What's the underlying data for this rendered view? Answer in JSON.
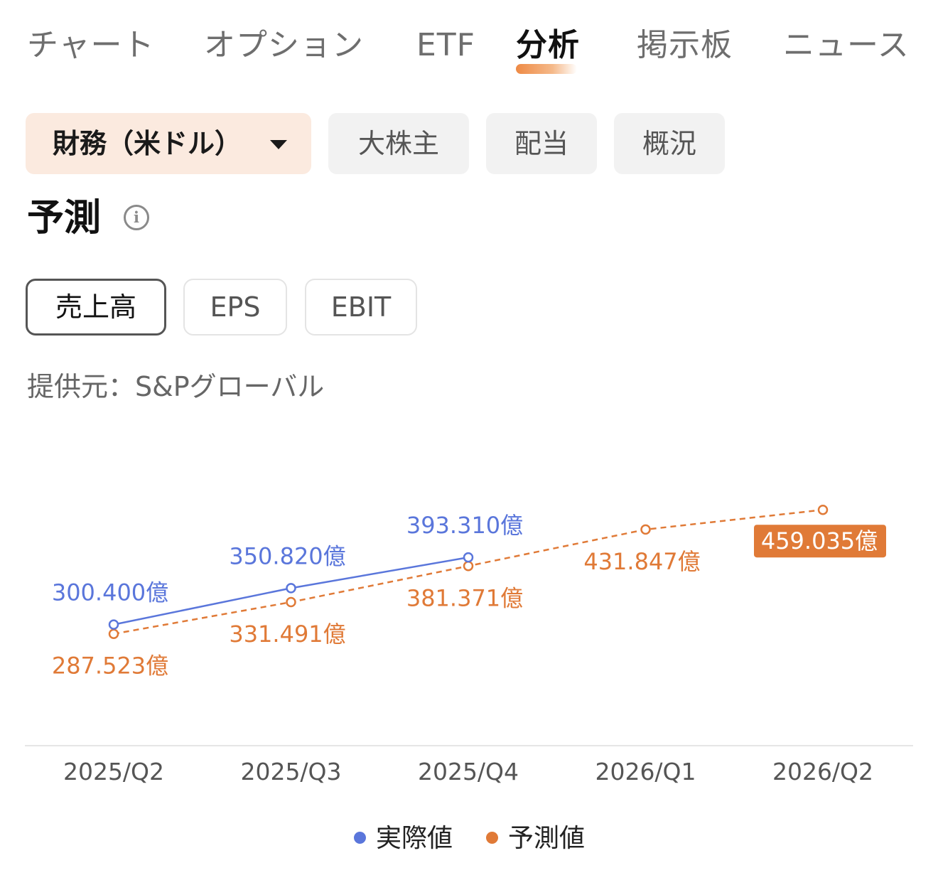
{
  "top_tabs": [
    {
      "label": "チャート",
      "active": false
    },
    {
      "label": "オプション",
      "active": false
    },
    {
      "label": "ETF",
      "active": false
    },
    {
      "label": "分析",
      "active": true
    },
    {
      "label": "掲示板",
      "active": false
    },
    {
      "label": "ニュース",
      "active": false
    }
  ],
  "sub_tabs": [
    {
      "label": "財務（米ドル）",
      "active": true,
      "dropdown": true
    },
    {
      "label": "大株主",
      "active": false
    },
    {
      "label": "配当",
      "active": false
    },
    {
      "label": "概況",
      "active": false
    }
  ],
  "section": {
    "title": "予測",
    "info_icon": "info-icon"
  },
  "metric_tabs": [
    {
      "label": "売上高",
      "active": true
    },
    {
      "label": "EPS",
      "active": false
    },
    {
      "label": "EBIT",
      "active": false
    }
  ],
  "source": "提供元：S&Pグローバル",
  "colors": {
    "accent": "#e8823e",
    "actual": "#5a76db",
    "forecast": "#e07a37",
    "chip_active_bg": "#fbeadf"
  },
  "chart_data": {
    "type": "line",
    "categories": [
      "2025/Q2",
      "2025/Q3",
      "2025/Q4",
      "2026/Q1",
      "2026/Q2"
    ],
    "unit": "億",
    "series": [
      {
        "name": "実際値",
        "values": [
          300.4,
          350.82,
          393.31,
          null,
          null
        ],
        "labels": [
          "300.400億",
          "350.820億",
          "393.310億",
          null,
          null
        ],
        "color": "#5a76db",
        "style": "solid"
      },
      {
        "name": "予測値",
        "values": [
          287.523,
          331.491,
          381.371,
          431.847,
          459.035
        ],
        "labels": [
          "287.523億",
          "331.491億",
          "381.371億",
          "431.847億",
          "459.035億"
        ],
        "color": "#e07a37",
        "style": "dashed",
        "highlighted_label_index": 4
      }
    ],
    "legend": {
      "placement": "bottom-center"
    }
  }
}
